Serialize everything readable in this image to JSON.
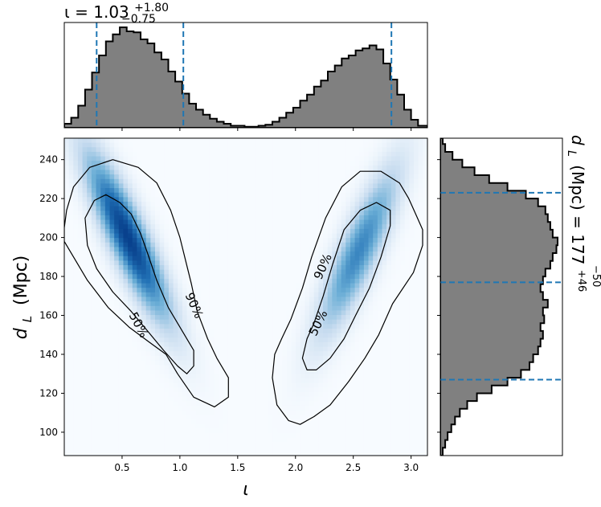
{
  "chart_data": [
    {
      "type": "histogram",
      "panel": "top-marginal",
      "title_main": "ι = 1.03",
      "title_plus": "+1.80",
      "title_minus": "−0.75",
      "xlim": [
        0.0,
        3.1416
      ],
      "fill_color": "#808080",
      "edge_color": "#000000",
      "quantile_lines": [
        0.28,
        1.03,
        2.83
      ],
      "quantile_color": "#1f77b4",
      "bin_edges": [
        0.0,
        0.06,
        0.12,
        0.18,
        0.24,
        0.3,
        0.36,
        0.42,
        0.48,
        0.54,
        0.6,
        0.66,
        0.72,
        0.78,
        0.84,
        0.9,
        0.96,
        1.02,
        1.08,
        1.14,
        1.2,
        1.26,
        1.32,
        1.38,
        1.44,
        1.5,
        1.56,
        1.62,
        1.68,
        1.74,
        1.8,
        1.86,
        1.92,
        1.98,
        2.04,
        2.1,
        2.16,
        2.22,
        2.28,
        2.34,
        2.4,
        2.46,
        2.52,
        2.58,
        2.64,
        2.7,
        2.76,
        2.82,
        2.88,
        2.94,
        3.0,
        3.06,
        3.1416
      ],
      "counts": [
        4,
        10,
        22,
        38,
        55,
        72,
        86,
        93,
        100,
        96,
        95,
        88,
        84,
        75,
        68,
        56,
        46,
        34,
        24,
        18,
        13,
        9,
        6,
        4,
        2,
        2,
        1,
        1,
        2,
        3,
        6,
        10,
        15,
        20,
        27,
        33,
        41,
        47,
        56,
        62,
        69,
        72,
        77,
        79,
        82,
        78,
        64,
        48,
        33,
        18,
        8,
        2
      ]
    },
    {
      "type": "heatmap",
      "panel": "joint",
      "xlabel_base": "ι",
      "ylabel_base": "d",
      "ylabel_sub": "L",
      "ylabel_unit": "(Mpc)",
      "xlim": [
        0.0,
        3.1416
      ],
      "ylim": [
        88,
        251
      ],
      "xticks": [
        "0.5",
        "1.0",
        "1.5",
        "2.0",
        "2.5",
        "3.0"
      ],
      "xtick_values": [
        0.5,
        1.0,
        1.5,
        2.0,
        2.5,
        3.0
      ],
      "yticks": [
        "100",
        "120",
        "140",
        "160",
        "180",
        "200",
        "220",
        "240"
      ],
      "ytick_values": [
        100,
        120,
        140,
        160,
        180,
        200,
        220,
        240
      ],
      "colormap": "Blues",
      "modes": [
        {
          "x": 0.55,
          "y": 200,
          "sx": 0.23,
          "sy": 27,
          "rho": -0.87,
          "weight": 1.0
        },
        {
          "x": 2.55,
          "y": 193,
          "sx": 0.22,
          "sy": 27,
          "rho": 0.85,
          "weight": 0.62
        }
      ],
      "contour_labels": [
        {
          "text": "50%",
          "x": 0.64,
          "y": 155,
          "angle": 62
        },
        {
          "text": "90%",
          "x": 1.12,
          "y": 165,
          "angle": 66
        },
        {
          "text": "50%",
          "x": 2.2,
          "y": 156,
          "angle": -64
        },
        {
          "text": "90%",
          "x": 2.24,
          "y": 185,
          "angle": -66
        }
      ],
      "contours": [
        {
          "level": "90%",
          "points": [
            [
              0.0,
              205
            ],
            [
              0.02,
              214
            ],
            [
              0.08,
              226
            ],
            [
              0.22,
              236
            ],
            [
              0.42,
              240
            ],
            [
              0.64,
              236
            ],
            [
              0.8,
              228
            ],
            [
              0.92,
              214
            ],
            [
              1.0,
              200
            ],
            [
              1.05,
              188
            ],
            [
              1.1,
              176
            ],
            [
              1.15,
              162
            ],
            [
              1.24,
              148
            ],
            [
              1.32,
              138
            ],
            [
              1.42,
              128
            ],
            [
              1.42,
              118
            ],
            [
              1.3,
              113
            ],
            [
              1.12,
              118
            ],
            [
              0.98,
              130
            ],
            [
              0.88,
              140
            ],
            [
              0.74,
              146
            ],
            [
              0.56,
              154
            ],
            [
              0.38,
              164
            ],
            [
              0.2,
              178
            ],
            [
              0.08,
              190
            ],
            [
              0.0,
              198
            ]
          ]
        },
        {
          "level": "50%",
          "points": [
            [
              0.18,
              210
            ],
            [
              0.26,
              219
            ],
            [
              0.36,
              222
            ],
            [
              0.48,
              218
            ],
            [
              0.58,
              212
            ],
            [
              0.66,
              202
            ],
            [
              0.72,
              192
            ],
            [
              0.8,
              178
            ],
            [
              0.9,
              164
            ],
            [
              1.02,
              152
            ],
            [
              1.12,
              142
            ],
            [
              1.12,
              134
            ],
            [
              1.06,
              130
            ],
            [
              0.98,
              134
            ],
            [
              0.86,
              142
            ],
            [
              0.72,
              152
            ],
            [
              0.58,
              162
            ],
            [
              0.42,
              172
            ],
            [
              0.28,
              184
            ],
            [
              0.2,
              196
            ]
          ]
        },
        {
          "level": "90%",
          "points": [
            [
              1.8,
              128
            ],
            [
              1.82,
              140
            ],
            [
              1.88,
              148
            ],
            [
              1.96,
              158
            ],
            [
              2.06,
              174
            ],
            [
              2.14,
              190
            ],
            [
              2.26,
              210
            ],
            [
              2.4,
              226
            ],
            [
              2.56,
              234
            ],
            [
              2.74,
              234
            ],
            [
              2.9,
              228
            ],
            [
              2.98,
              220
            ],
            [
              3.04,
              212
            ],
            [
              3.1,
              204
            ],
            [
              3.1,
              196
            ],
            [
              3.02,
              182
            ],
            [
              2.84,
              166
            ],
            [
              2.72,
              150
            ],
            [
              2.6,
              138
            ],
            [
              2.46,
              126
            ],
            [
              2.3,
              114
            ],
            [
              2.16,
              108
            ],
            [
              2.04,
              104
            ],
            [
              1.94,
              106
            ],
            [
              1.84,
              114
            ]
          ]
        },
        {
          "level": "50%",
          "points": [
            [
              2.06,
              138
            ],
            [
              2.1,
              148
            ],
            [
              2.16,
              156
            ],
            [
              2.24,
              170
            ],
            [
              2.32,
              186
            ],
            [
              2.42,
              204
            ],
            [
              2.56,
              214
            ],
            [
              2.7,
              218
            ],
            [
              2.82,
              214
            ],
            [
              2.82,
              206
            ],
            [
              2.74,
              190
            ],
            [
              2.64,
              174
            ],
            [
              2.52,
              160
            ],
            [
              2.42,
              148
            ],
            [
              2.3,
              138
            ],
            [
              2.18,
              132
            ],
            [
              2.1,
              132
            ]
          ]
        }
      ]
    },
    {
      "type": "histogram",
      "panel": "right-marginal",
      "orientation": "horizontal",
      "title_main": "d",
      "title_sub": "L",
      "title_unit": "(Mpc) = 177",
      "title_plus": "+46",
      "title_minus": "−50",
      "ylim": [
        88,
        251
      ],
      "fill_color": "#808080",
      "edge_color": "#000000",
      "quantile_lines": [
        127,
        177,
        223
      ],
      "quantile_color": "#1f77b4",
      "bin_edges": [
        88,
        92,
        96,
        100,
        104,
        108,
        112,
        116,
        120,
        124,
        128,
        132,
        136,
        140,
        144,
        148,
        152,
        156,
        160,
        164,
        168,
        172,
        176,
        180,
        184,
        188,
        192,
        196,
        200,
        204,
        208,
        212,
        216,
        220,
        224,
        228,
        232,
        236,
        240,
        244,
        248,
        251
      ],
      "counts": [
        2,
        4,
        6,
        9,
        12,
        16,
        22,
        30,
        42,
        55,
        66,
        73,
        76,
        80,
        82,
        84,
        82,
        85,
        84,
        88,
        84,
        82,
        84,
        86,
        90,
        92,
        95,
        96,
        92,
        90,
        88,
        86,
        80,
        70,
        55,
        40,
        28,
        18,
        10,
        4,
        2
      ]
    }
  ]
}
